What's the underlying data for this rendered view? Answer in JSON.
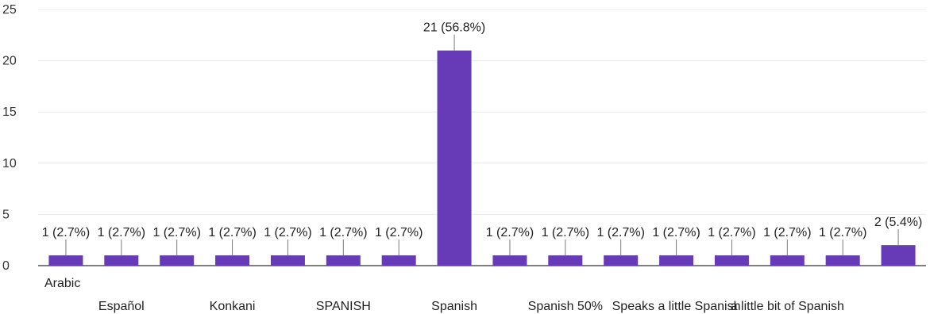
{
  "chart_data": {
    "type": "bar",
    "title": "",
    "xlabel": "",
    "ylabel": "",
    "ylim": [
      0,
      25
    ],
    "yticks": [
      0,
      5,
      10,
      15,
      20,
      25
    ],
    "grid": true,
    "legend": "none",
    "bar_color": "#673ab7",
    "categories": [
      "Arabic",
      "Español",
      "",
      "Konkani",
      "",
      "SPANISH",
      "",
      "Spanish",
      "",
      "Spanish 50%",
      "",
      "Speaks a little Spanish",
      "",
      "a little bit of Spanish",
      "",
      ""
    ],
    "values": [
      1,
      1,
      1,
      1,
      1,
      1,
      1,
      21,
      1,
      1,
      1,
      1,
      1,
      1,
      1,
      2
    ],
    "data_labels": [
      "1 (2.7%)",
      "1 (2.7%)",
      "1 (2.7%)",
      "1 (2.7%)",
      "1 (2.7%)",
      "1 (2.7%)",
      "1 (2.7%)",
      "21 (56.8%)",
      "1 (2.7%)",
      "1 (2.7%)",
      "1 (2.7%)",
      "1 (2.7%)",
      "1 (2.7%)",
      "1 (2.7%)",
      "1 (2.7%)",
      "2 (5.4%)"
    ]
  }
}
